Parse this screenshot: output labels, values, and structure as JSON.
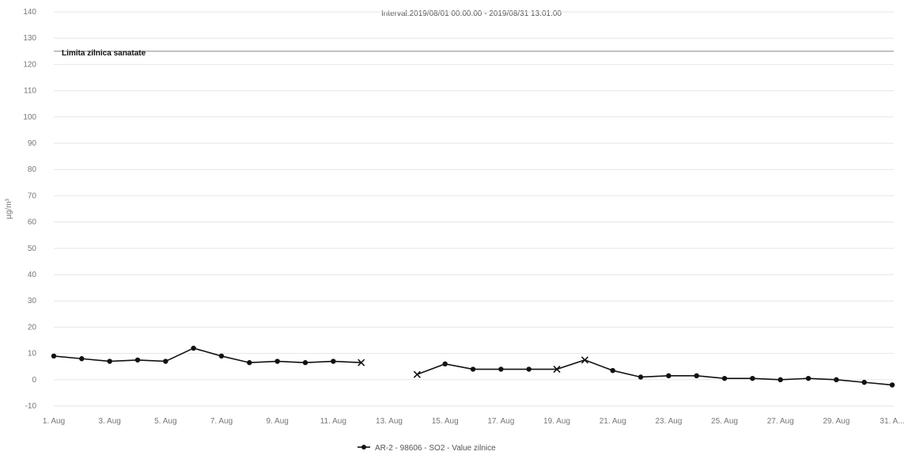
{
  "chart_data": {
    "type": "line",
    "title": "Interval:2019/08/01 00:00:00 - 2019/08/31 13:01:00",
    "ylabel": "µg/m³",
    "xlabel": "",
    "ylim": [
      -10,
      140
    ],
    "yticks": [
      -10,
      0,
      10,
      20,
      30,
      40,
      50,
      60,
      70,
      80,
      90,
      100,
      110,
      120,
      130,
      140
    ],
    "xticks": [
      "1. Aug",
      "3. Aug",
      "5. Aug",
      "7. Aug",
      "9. Aug",
      "11. Aug",
      "13. Aug",
      "15. Aug",
      "17. Aug",
      "19. Aug",
      "21. Aug",
      "23. Aug",
      "25. Aug",
      "27. Aug",
      "29. Aug",
      "31. A..."
    ],
    "grid": true,
    "threshold": {
      "value": 125,
      "label": "Limita zilnica sanatate"
    },
    "legend_position": "bottom-center",
    "series": [
      {
        "name": "AR-2 - 98606 - SO2 - Value zilnice",
        "color": "#111111",
        "x": [
          1,
          2,
          3,
          4,
          5,
          6,
          7,
          8,
          9,
          10,
          11,
          12,
          13,
          14,
          15,
          16,
          17,
          18,
          19,
          20,
          21,
          22,
          23,
          24,
          25,
          26,
          27,
          28,
          29,
          30,
          31
        ],
        "values": [
          9,
          8,
          7,
          7.5,
          7,
          12,
          9,
          6.5,
          7,
          6.5,
          7,
          6.5,
          null,
          2,
          6,
          4,
          4,
          4,
          4,
          7.5,
          3.5,
          1,
          1.5,
          1.5,
          0.5,
          0.5,
          0,
          0.5,
          0,
          -1,
          -2
        ],
        "markers": [
          "circle",
          "circle",
          "circle",
          "circle",
          "circle",
          "circle",
          "circle",
          "circle",
          "circle",
          "circle",
          "circle",
          "x",
          null,
          "x",
          "circle",
          "circle",
          "circle",
          "circle",
          "x",
          "x",
          "circle",
          "circle",
          "circle",
          "circle",
          "circle",
          "circle",
          "circle",
          "circle",
          "circle",
          "circle",
          "circle"
        ]
      }
    ]
  }
}
